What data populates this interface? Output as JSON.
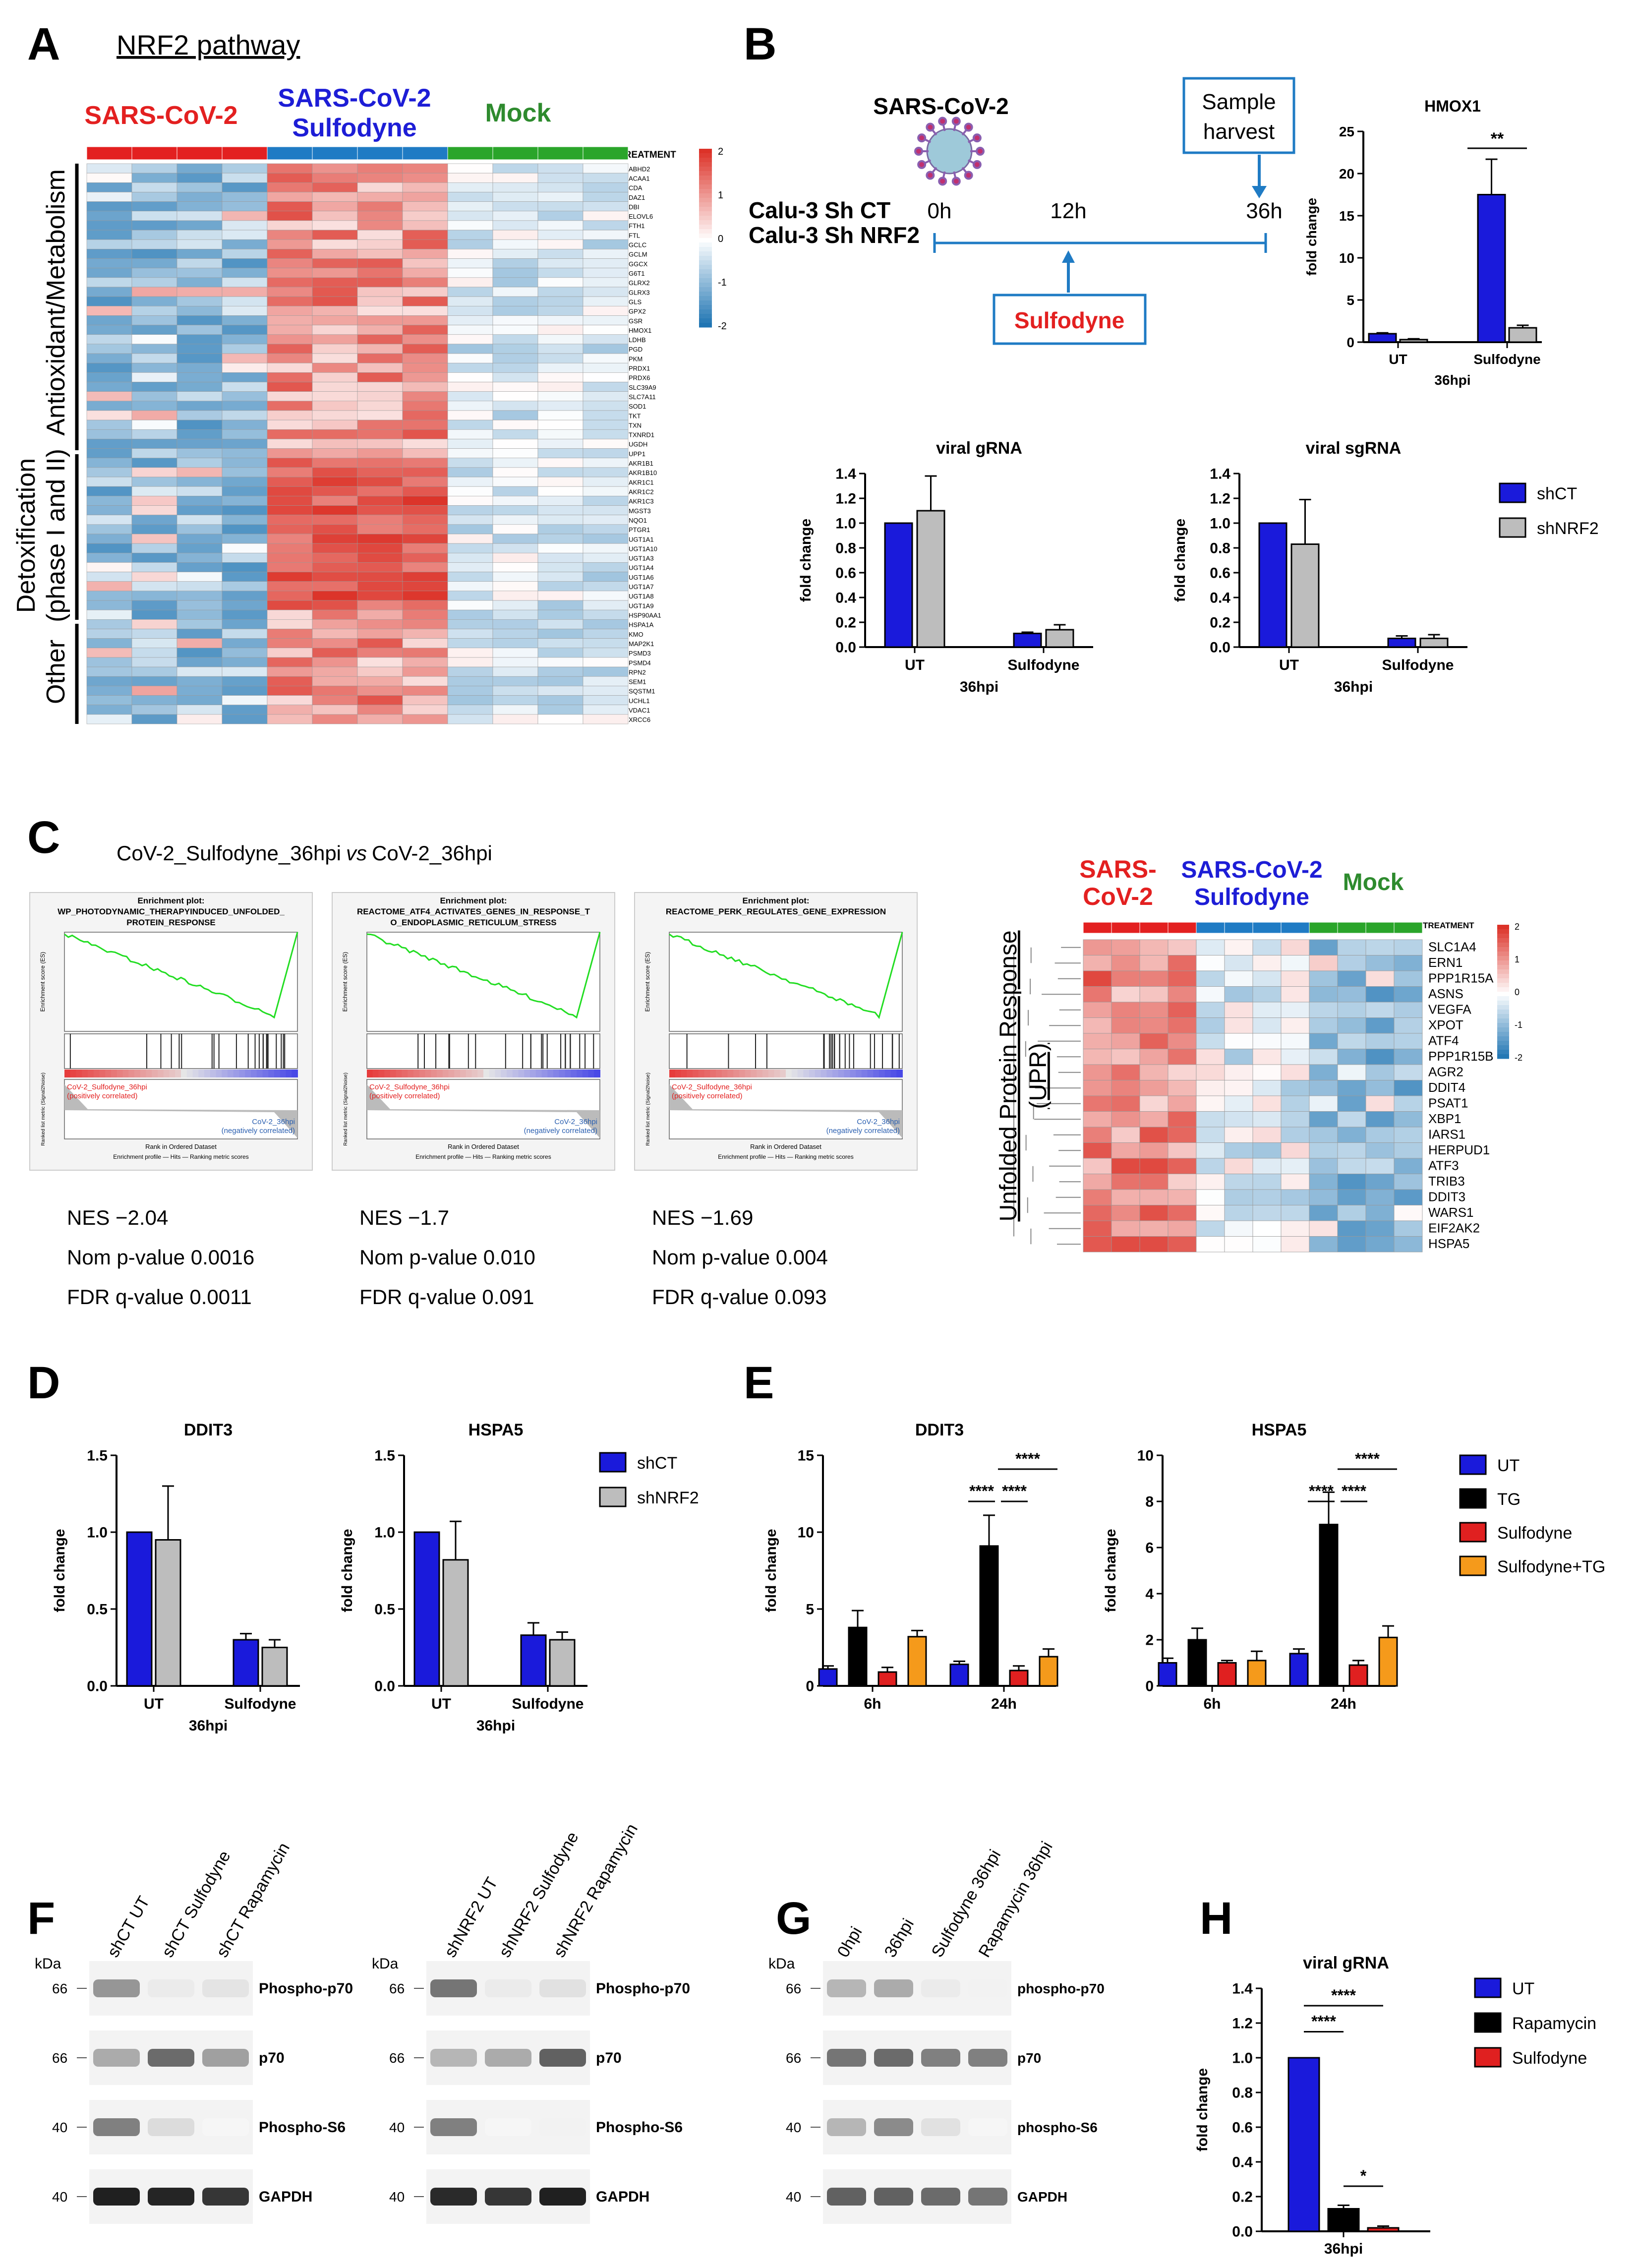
{
  "colors": {
    "shCT": "#1a1adb",
    "shNRF2": "#bdbdbd",
    "UT": "#1a1adb",
    "TG": "#000000",
    "Sulfodyne": "#e02020",
    "SulfodyneTG": "#f59a1b",
    "Rapamycin": "#000000",
    "red": "#e32020",
    "blue": "#1d1dd6",
    "green": "#2e8b2e",
    "accent": "#1f7bc4"
  },
  "panelA": {
    "letter": "A",
    "title": "NRF2 pathway",
    "groups": [
      "SARS-CoV-2",
      "SARS-CoV-2",
      "Sulfodyne",
      "Mock"
    ],
    "treatment": "TREATMENT",
    "sections": [
      "Antioxidant/Metabolism",
      "Detoxification",
      "(phase I and II)",
      "Other"
    ],
    "scale": [
      "2",
      "1",
      "0",
      "-1",
      "-2"
    ],
    "genes": [
      "ABHD2",
      "ACAA1",
      "CDA",
      "DAZ1",
      "DBI",
      "ELOVL6",
      "FTH1",
      "FTL",
      "GCLC",
      "GCLM",
      "GGCX",
      "G6T1",
      "GLRX2",
      "GLRX3",
      "GLS",
      "GPX2",
      "GSR",
      "HMOX1",
      "LDHB",
      "PGD",
      "PKM",
      "PRDX1",
      "PRDX6",
      "SLC39A9",
      "SLC7A11",
      "SOD1",
      "TKT",
      "TXN",
      "TXNRD1",
      "UGDH",
      "UPP1",
      "AKR1B1",
      "AKR1B10",
      "AKR1C1",
      "AKR1C2",
      "AKR1C3",
      "MGST3",
      "NQO1",
      "PTGR1",
      "UGT1A1",
      "UGT1A10",
      "UGT1A3",
      "UGT1A4",
      "UGT1A6",
      "UGT1A7",
      "UGT1A8",
      "UGT1A9",
      "HSP90AA1",
      "HSPA1A",
      "KMO",
      "MAP2K1",
      "PSMD3",
      "PSMD4",
      "RPN2",
      "SEM1",
      "SQSTM1",
      "UCHL1",
      "VDAC1",
      "XRCC6"
    ]
  },
  "panelB": {
    "letter": "B",
    "virus": "SARS-CoV-2",
    "sample": "Sample",
    "harvest": "harvest",
    "line1": "Calu-3 Sh CT",
    "line2": "Calu-3 Sh NRF2",
    "t0": "0h",
    "t12": "12h",
    "t36": "36h",
    "drug": "Sulfodyne",
    "hmox": {
      "title": "HMOX1",
      "ylabel": "fold change",
      "ticks": [
        "0",
        "5",
        "10",
        "15",
        "20",
        "25"
      ],
      "cats": [
        "UT",
        "Sulfodyne"
      ],
      "x": "36hpi",
      "sig": "**",
      "shCT": [
        1.0,
        17.5
      ],
      "shNRF2": [
        0.3,
        1.7
      ],
      "errCT": [
        0.1,
        4.2
      ],
      "errNRF2": [
        0.1,
        0.3
      ]
    },
    "grna": {
      "title": "viral gRNA",
      "ylabel": "fold change",
      "ticks": [
        "0.0",
        "0.2",
        "0.4",
        "0.6",
        "0.8",
        "1.0",
        "1.2",
        "1.4"
      ],
      "cats": [
        "UT",
        "Sulfodyne"
      ],
      "x": "36hpi",
      "shCT": [
        1.0,
        0.11
      ],
      "shNRF2": [
        1.1,
        0.14
      ],
      "errCT": [
        0,
        0.01
      ],
      "errNRF2": [
        0.28,
        0.04
      ]
    },
    "sgrna": {
      "title": "viral sgRNA",
      "ylabel": "fold change",
      "ticks": [
        "0.0",
        "0.2",
        "0.4",
        "0.6",
        "0.8",
        "1.0",
        "1.2",
        "1.4"
      ],
      "cats": [
        "UT",
        "Sulfodyne"
      ],
      "x": "36hpi",
      "shCT": [
        1.0,
        0.07
      ],
      "shNRF2": [
        0.83,
        0.07
      ],
      "errCT": [
        0,
        0.02
      ],
      "errNRF2": [
        0.36,
        0.03
      ]
    },
    "legend": [
      "shCT",
      "shNRF2"
    ]
  },
  "panelC": {
    "letter": "C",
    "compA": "CoV-2_Sulfodyne_36hpi",
    "vs": "vs",
    "compB": "CoV-2_36hpi",
    "gsea": [
      {
        "head": "Enrichment plot:",
        "t1": "WP_PHOTODYNAMIC_THERAPYINDUCED_UNFOLDED_",
        "t2": "PROTEIN_RESPONSE",
        "nes": "NES −2.04",
        "p": "Nom p-value 0.0016",
        "q": "FDR q-value 0.0011"
      },
      {
        "head": "Enrichment plot:",
        "t1": "REACTOME_ATF4_ACTIVATES_GENES_IN_RESPONSE_T",
        "t2": "O_ENDOPLASMIC_RETICULUM_STRESS",
        "nes": "NES −1.7",
        "p": "Nom p-value 0.010",
        "q": "FDR q-value 0.091"
      },
      {
        "head": "Enrichment plot:",
        "t1": "REACTOME_PERK_REGULATES_GENE_EXPRESSION",
        "t2": "",
        "nes": "NES −1.69",
        "p": "Nom p-value 0.004",
        "q": "FDR q-value 0.093"
      }
    ],
    "es": "Enrichment score (ES)",
    "pos": "CoV-2_Sulfodyne_36hpi",
    "posc": "(positively correlated)",
    "neg": "CoV-2_36hpi",
    "negc": "(negatively correlated)",
    "rank": "Rank in Ordered Dataset",
    "metric": "Ranked list metric (Signal2Noise)",
    "legend": "Enrichment profile — Hits — Ranking metric scores",
    "hmGroups": [
      "SARS-",
      "CoV-2",
      "SARS-CoV-2",
      "Sulfodyne",
      "Mock"
    ],
    "treatment": "TREATMENT",
    "upr": "Unfolded Protein Response",
    "uprAbbr": "(UPR)",
    "scale": [
      "2",
      "1",
      "0",
      "-1",
      "-2"
    ],
    "genes": [
      "SLC1A4",
      "ERN1",
      "PPP1R15A",
      "ASNS",
      "VEGFA",
      "XPOT",
      "ATF4",
      "PPP1R15B",
      "AGR2",
      "DDIT4",
      "PSAT1",
      "XBP1",
      "IARS1",
      "HERPUD1",
      "ATF3",
      "TRIB3",
      "DDIT3",
      "WARS1",
      "EIF2AK2",
      "HSPA5"
    ]
  },
  "panelD": {
    "letter": "D",
    "ddit3": {
      "title": "DDIT3",
      "ylabel": "fold change",
      "ticks": [
        "0.0",
        "0.5",
        "1.0",
        "1.5"
      ],
      "cats": [
        "UT",
        "Sulfodyne"
      ],
      "x": "36hpi",
      "shCT": [
        1.0,
        0.3
      ],
      "shNRF2": [
        0.95,
        0.25
      ],
      "errCT": [
        0,
        0.04
      ],
      "errNRF2": [
        0.35,
        0.05
      ]
    },
    "hspa5": {
      "title": "HSPA5",
      "ylabel": "fold change",
      "ticks": [
        "0.0",
        "0.5",
        "1.0",
        "1.5"
      ],
      "cats": [
        "UT",
        "Sulfodyne"
      ],
      "x": "36hpi",
      "shCT": [
        1.0,
        0.33
      ],
      "shNRF2": [
        0.82,
        0.3
      ],
      "errCT": [
        0,
        0.08
      ],
      "errNRF2": [
        0.25,
        0.05
      ]
    },
    "legend": [
      "shCT",
      "shNRF2"
    ]
  },
  "panelE": {
    "letter": "E",
    "ddit3": {
      "title": "DDIT3",
      "ylabel": "fold change",
      "ticks": [
        "0",
        "5",
        "10",
        "15"
      ],
      "ymax": 15,
      "cats": [
        "6h",
        "24h"
      ],
      "vals": [
        [
          1.1,
          3.8,
          0.9,
          3.2
        ],
        [
          1.4,
          9.1,
          1.0,
          1.9
        ]
      ],
      "errs": [
        [
          0.2,
          1.1,
          0.3,
          0.4
        ],
        [
          0.2,
          2.0,
          0.3,
          0.5
        ]
      ],
      "sig": [
        "****",
        "****",
        "****"
      ]
    },
    "hspa5": {
      "title": "HSPA5",
      "ylabel": "fold change",
      "ticks": [
        "0",
        "2",
        "4",
        "6",
        "8",
        "10"
      ],
      "ymax": 10,
      "cats": [
        "6h",
        "24h"
      ],
      "vals": [
        [
          1.0,
          2.0,
          1.0,
          1.1
        ],
        [
          1.4,
          7.0,
          0.9,
          2.1
        ]
      ],
      "errs": [
        [
          0.2,
          0.5,
          0.1,
          0.4
        ],
        [
          0.2,
          1.4,
          0.2,
          0.5
        ]
      ],
      "sig": [
        "****",
        "****",
        "****"
      ]
    },
    "legend": [
      "UT",
      "TG",
      "Sulfodyne",
      "Sulfodyne+TG"
    ]
  },
  "panelF": {
    "letter": "F",
    "kda": "kDa",
    "lanesA": [
      "shCT UT",
      "shCT Sulfodyne",
      "shCT Rapamycin"
    ],
    "lanesB": [
      "shNRF2 UT",
      "shNRF2 Sulfodyne",
      "shNRF2 Rapamycin"
    ],
    "bands": [
      "Phospho-p70",
      "p70",
      "Phospho-S6",
      "GAPDH"
    ],
    "mw": [
      "66",
      "66",
      "40",
      "40"
    ]
  },
  "panelG": {
    "letter": "G",
    "kda": "kDa",
    "lanes": [
      "0hpi",
      "36hpi",
      "Sulfodyne 36hpi",
      "Rapamycin 36hpi"
    ],
    "bands": [
      "phospho-p70",
      "p70",
      "phospho-S6",
      "GAPDH"
    ],
    "mw": [
      "66",
      "66",
      "40",
      "40"
    ]
  },
  "panelH": {
    "letter": "H",
    "title": "viral gRNA",
    "ylabel": "fold change",
    "x": "36hpi",
    "ticks": [
      "0.0",
      "0.2",
      "0.4",
      "0.6",
      "0.8",
      "1.0",
      "1.2",
      "1.4"
    ],
    "vals": [
      1.0,
      0.13,
      0.02
    ],
    "errs": [
      0,
      0.02,
      0.01
    ],
    "sig": [
      "****",
      "****",
      "*"
    ],
    "legend": [
      "UT",
      "Rapamycin",
      "Sulfodyne"
    ]
  }
}
